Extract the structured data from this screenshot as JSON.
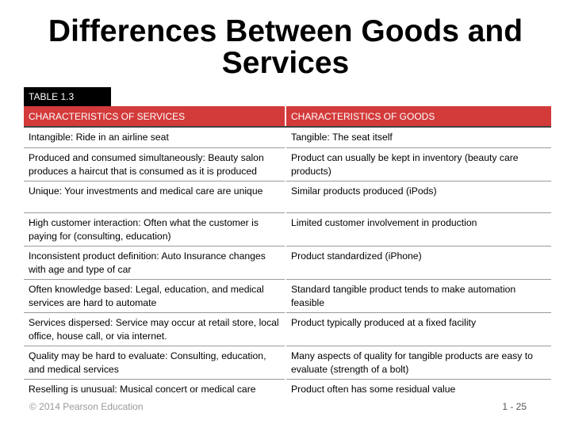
{
  "title": "Differences Between Goods and Services",
  "table_label": "TABLE 1.3",
  "table": {
    "headers": [
      "CHARACTERISTICS OF SERVICES",
      "CHARACTERISTICS OF GOODS"
    ],
    "rows": [
      [
        "Intangible: Ride in an airline seat",
        "Tangible: The seat itself"
      ],
      [
        "Produced and consumed simultaneously: Beauty salon produces a haircut that is consumed as it is produced",
        "Product can usually be kept in inventory (beauty care products)"
      ],
      [
        "Unique: Your investments and medical care are unique",
        "Similar products produced (iPods)"
      ],
      [
        "High customer interaction: Often what the customer is paying for (consulting, education)",
        "Limited customer involvement in production"
      ],
      [
        "Inconsistent product definition: Auto Insurance changes with age and type of car",
        "Product standardized (iPhone)"
      ],
      [
        "Often knowledge based: Legal, education, and medical services are hard to automate",
        "Standard tangible product tends to make automation feasible"
      ],
      [
        "Services dispersed: Service may occur at retail store, local office, house call, or via internet.",
        "Product typically produced at a fixed facility"
      ],
      [
        "Quality may be hard to evaluate: Consulting, education, and medical services",
        "Many aspects of quality for tangible products are easy to evaluate (strength of a bolt)"
      ],
      [
        "Reselling is unusual: Musical concert or medical care",
        "Product often has some residual value"
      ]
    ]
  },
  "footer": {
    "copyright": "© 2014 Pearson Education",
    "page": "1 - 25"
  }
}
